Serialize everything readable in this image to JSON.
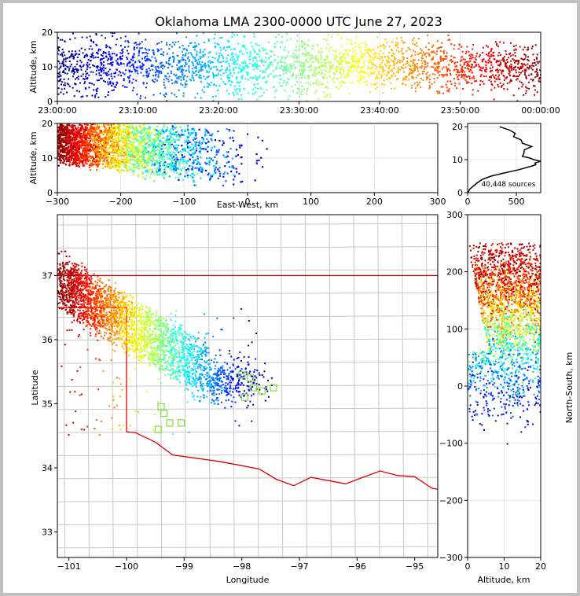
{
  "title": "Oklahoma LMA 2300-0000 UTC June 27, 2023",
  "chart_data": [
    {
      "panel": "altitude-time",
      "type": "scatter",
      "colormap": "jet (blue = early, red = late)",
      "ylabel": "Altitude, km",
      "xlim": [
        "23:00:00",
        "00:00:00"
      ],
      "ylim": [
        0,
        20
      ],
      "xticks": [
        "23:00:00",
        "23:10:00",
        "23:20:00",
        "23:30:00",
        "23:40:00",
        "23:50:00",
        "00:00:00"
      ],
      "yticks": [
        "0",
        "10",
        "20"
      ],
      "grid": true
    },
    {
      "panel": "altitude-eastwest",
      "type": "scatter",
      "xlabel": "East-West, km",
      "ylabel": "Altitude, km",
      "xlim": [
        -300,
        300
      ],
      "ylim": [
        0,
        20
      ],
      "xticks": [
        "−300",
        "−200",
        "−100",
        "0",
        "100",
        "200",
        "300"
      ],
      "yticks": [
        "0",
        "10",
        "20"
      ],
      "grid": true
    },
    {
      "panel": "altitude-histogram",
      "type": "line",
      "annotation": "40,448 sources",
      "xlim": [
        0,
        750
      ],
      "ylim": [
        0,
        21
      ],
      "xticks": [
        "0",
        "500"
      ],
      "yticks": [
        "0",
        "10",
        "20"
      ],
      "profile_altitude_km": [
        0,
        1,
        2,
        3,
        4,
        5,
        6,
        7,
        8,
        8.5,
        9,
        9.5,
        10,
        10.5,
        11,
        12,
        13,
        14,
        15,
        16,
        17,
        18,
        19,
        19.5,
        20
      ],
      "profile_count": [
        5,
        20,
        60,
        100,
        150,
        240,
        380,
        530,
        650,
        700,
        690,
        730,
        700,
        620,
        580,
        560,
        600,
        640,
        580,
        530,
        490,
        470,
        430,
        380,
        330
      ],
      "grid": true
    },
    {
      "panel": "plan-view",
      "type": "scatter",
      "xlabel": "Longitude",
      "ylabel": "Latitude",
      "xlim": [
        -101.2,
        -94.6
      ],
      "ylim": [
        32.6,
        37.95
      ],
      "xticks": [
        "−101",
        "−100",
        "−99",
        "−98",
        "−97",
        "−96",
        "−95"
      ],
      "yticks": [
        "33",
        "34",
        "35",
        "36",
        "37"
      ],
      "grid": true,
      "map_layers": [
        "county boundaries",
        "Oklahoma state boundary"
      ],
      "stations": [
        [
          -99.4,
          34.95
        ],
        [
          -99.35,
          34.85
        ],
        [
          -99.45,
          34.6
        ],
        [
          -99.25,
          34.7
        ],
        [
          -99.05,
          34.7
        ],
        [
          -98.0,
          35.45
        ],
        [
          -97.85,
          35.4
        ],
        [
          -97.8,
          35.25
        ],
        [
          -97.95,
          35.1
        ],
        [
          -97.65,
          35.2
        ],
        [
          -97.45,
          35.25
        ]
      ]
    },
    {
      "panel": "northsouth-altitude",
      "type": "scatter",
      "xlabel": "Altitude, km",
      "ylabel": "North-South, km",
      "xlim": [
        0,
        20
      ],
      "ylim": [
        -300,
        300
      ],
      "xticks": [
        "0",
        "10",
        "20"
      ],
      "yticks": [
        "−300",
        "−200",
        "−100",
        "0",
        "100",
        "200",
        "300"
      ],
      "grid": true
    }
  ]
}
